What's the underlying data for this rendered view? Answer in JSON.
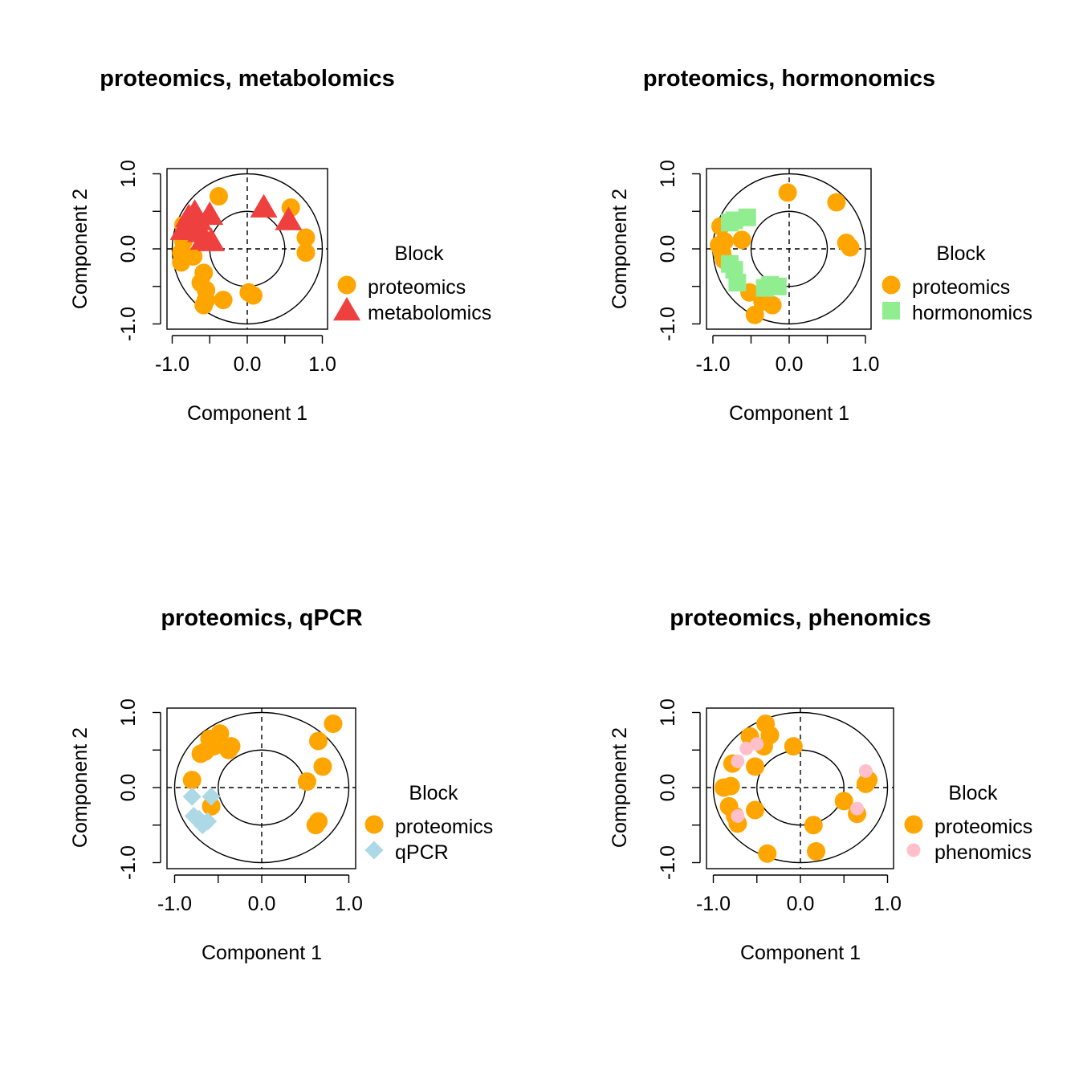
{
  "colors": {
    "proteomics": "#FFA500",
    "metabolomics": "#EF4040",
    "hormonomics": "#90EE90",
    "qPCR": "#ADD8E6",
    "phenomics": "#FFC0CB"
  },
  "chart_data": [
    {
      "type": "scatter",
      "title": "proteomics, metabolomics",
      "xlabel": "Component  1",
      "ylabel": "Component  2",
      "xlim": [
        -1.0,
        1.0
      ],
      "ylim": [
        -1.0,
        1.0
      ],
      "x_ticks": [
        "-1.0",
        "0.0",
        "1.0"
      ],
      "y_ticks": [
        "-1.0",
        "0.0",
        "1.0"
      ],
      "circles": [
        0.5,
        1.0
      ],
      "legend": {
        "title": "Block",
        "placement": "right",
        "entries": [
          "proteomics",
          "metabolomics"
        ]
      },
      "series": [
        {
          "name": "proteomics",
          "color": "#FFA500",
          "marker": "circle",
          "points": [
            [
              -0.38,
              0.7
            ],
            [
              0.58,
              0.55
            ],
            [
              0.78,
              0.15
            ],
            [
              0.78,
              -0.05
            ],
            [
              -0.85,
              0.1
            ],
            [
              -0.88,
              -0.05
            ],
            [
              -0.88,
              -0.18
            ],
            [
              -0.72,
              -0.1
            ],
            [
              -0.85,
              0.32
            ],
            [
              -0.58,
              -0.32
            ],
            [
              -0.62,
              -0.45
            ],
            [
              -0.55,
              -0.55
            ],
            [
              -0.55,
              -0.68
            ],
            [
              -0.32,
              -0.68
            ],
            [
              -0.58,
              -0.75
            ],
            [
              0.02,
              -0.58
            ],
            [
              0.08,
              -0.62
            ]
          ]
        },
        {
          "name": "metabolomics",
          "color": "#EF4040",
          "marker": "triangle",
          "points": [
            [
              -0.7,
              0.48
            ],
            [
              -0.78,
              0.42
            ],
            [
              -0.65,
              0.38
            ],
            [
              -0.5,
              0.45
            ],
            [
              -0.85,
              0.25
            ],
            [
              -0.72,
              0.25
            ],
            [
              -0.62,
              0.22
            ],
            [
              -0.58,
              0.12
            ],
            [
              -0.48,
              0.1
            ],
            [
              0.22,
              0.55
            ],
            [
              0.55,
              0.38
            ]
          ]
        }
      ]
    },
    {
      "type": "scatter",
      "title": "proteomics, hormonomics",
      "xlabel": "Component  1",
      "ylabel": "Component  2",
      "xlim": [
        -1.0,
        1.0
      ],
      "ylim": [
        -1.0,
        1.0
      ],
      "x_ticks": [
        "-1.0",
        "0.0",
        "1.0"
      ],
      "y_ticks": [
        "-1.0",
        "0.0",
        "1.0"
      ],
      "circles": [
        0.5,
        1.0
      ],
      "legend": {
        "title": "Block",
        "placement": "right",
        "entries": [
          "proteomics",
          "hormonomics"
        ]
      },
      "series": [
        {
          "name": "proteomics",
          "color": "#FFA500",
          "marker": "circle",
          "points": [
            [
              -0.02,
              0.75
            ],
            [
              0.62,
              0.62
            ],
            [
              0.75,
              0.08
            ],
            [
              0.8,
              0.02
            ],
            [
              -0.9,
              0.3
            ],
            [
              -0.92,
              0.05
            ],
            [
              -0.85,
              0.1
            ],
            [
              -0.85,
              -0.15
            ],
            [
              -0.88,
              -0.05
            ],
            [
              -0.62,
              0.12
            ],
            [
              -0.52,
              -0.58
            ],
            [
              -0.35,
              -0.7
            ],
            [
              -0.22,
              -0.75
            ],
            [
              -0.45,
              -0.88
            ]
          ]
        },
        {
          "name": "hormonomics",
          "color": "#90EE90",
          "marker": "square",
          "points": [
            [
              -0.78,
              0.35
            ],
            [
              -0.72,
              0.38
            ],
            [
              -0.55,
              0.42
            ],
            [
              -0.78,
              -0.2
            ],
            [
              -0.72,
              -0.28
            ],
            [
              -0.68,
              -0.45
            ],
            [
              -0.32,
              -0.52
            ],
            [
              -0.25,
              -0.48
            ],
            [
              -0.15,
              -0.5
            ]
          ]
        }
      ]
    },
    {
      "type": "scatter",
      "title": "proteomics, qPCR",
      "xlabel": "Component  1",
      "ylabel": "Component  2",
      "xlim": [
        -1.0,
        1.0
      ],
      "ylim": [
        -1.0,
        1.0
      ],
      "x_ticks": [
        "-1.0",
        "0.0",
        "1.0"
      ],
      "y_ticks": [
        "-1.0",
        "0.0",
        "1.0"
      ],
      "circles": [
        0.5,
        1.0
      ],
      "legend": {
        "title": "Block",
        "placement": "right",
        "entries": [
          "proteomics",
          "qPCR"
        ]
      },
      "series": [
        {
          "name": "proteomics",
          "color": "#FFA500",
          "marker": "circle",
          "points": [
            [
              -0.48,
              0.72
            ],
            [
              -0.6,
              0.65
            ],
            [
              -0.55,
              0.55
            ],
            [
              -0.7,
              0.45
            ],
            [
              -0.65,
              0.48
            ],
            [
              -0.35,
              0.55
            ],
            [
              -0.38,
              0.5
            ],
            [
              0.82,
              0.85
            ],
            [
              0.65,
              0.62
            ],
            [
              0.7,
              0.28
            ],
            [
              0.52,
              0.08
            ],
            [
              -0.8,
              0.1
            ],
            [
              -0.58,
              -0.25
            ],
            [
              0.65,
              -0.45
            ],
            [
              0.62,
              -0.5
            ]
          ]
        },
        {
          "name": "qPCR",
          "color": "#ADD8E6",
          "marker": "diamond",
          "points": [
            [
              -0.8,
              -0.12
            ],
            [
              -0.58,
              -0.12
            ],
            [
              -0.78,
              -0.38
            ],
            [
              -0.72,
              -0.42
            ],
            [
              -0.62,
              -0.45
            ],
            [
              -0.68,
              -0.5
            ]
          ]
        }
      ]
    },
    {
      "type": "scatter",
      "title": "proteomics, phenomics",
      "xlabel": "Component  1",
      "ylabel": "Component  2",
      "xlim": [
        -1.0,
        1.0
      ],
      "ylim": [
        -1.0,
        1.0
      ],
      "x_ticks": [
        "-1.0",
        "0.0",
        "1.0"
      ],
      "y_ticks": [
        "-1.0",
        "0.0",
        "1.0"
      ],
      "circles": [
        0.5,
        1.0
      ],
      "legend": {
        "title": "Block",
        "placement": "right",
        "entries": [
          "proteomics",
          "phenomics"
        ]
      },
      "series": [
        {
          "name": "proteomics",
          "color": "#FFA500",
          "marker": "circle",
          "points": [
            [
              -0.4,
              0.85
            ],
            [
              -0.58,
              0.68
            ],
            [
              -0.35,
              0.7
            ],
            [
              -0.42,
              0.55
            ],
            [
              -0.08,
              0.55
            ],
            [
              -0.52,
              0.28
            ],
            [
              -0.78,
              0.32
            ],
            [
              -0.88,
              0.0
            ],
            [
              -0.8,
              0.02
            ],
            [
              -0.82,
              -0.25
            ],
            [
              -0.75,
              -0.38
            ],
            [
              -0.72,
              -0.48
            ],
            [
              -0.52,
              -0.3
            ],
            [
              0.5,
              -0.18
            ],
            [
              0.65,
              -0.35
            ],
            [
              0.78,
              0.1
            ],
            [
              0.75,
              0.05
            ],
            [
              0.15,
              -0.5
            ],
            [
              0.18,
              -0.85
            ],
            [
              -0.38,
              -0.88
            ]
          ]
        },
        {
          "name": "phenomics",
          "color": "#FFC0CB",
          "marker": "circle-small",
          "points": [
            [
              -0.62,
              0.52
            ],
            [
              -0.5,
              0.58
            ],
            [
              -0.72,
              0.35
            ],
            [
              0.75,
              0.22
            ],
            [
              0.65,
              -0.28
            ],
            [
              -0.72,
              -0.38
            ]
          ]
        }
      ]
    }
  ]
}
